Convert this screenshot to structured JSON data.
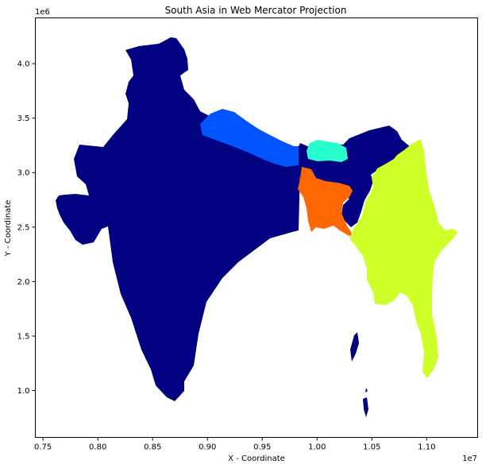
{
  "chart_data": {
    "type": "choropleth-map",
    "title": "South Asia in Web Mercator Projection",
    "xlabel": "X - Coordinate",
    "ylabel": "Y - Coordinate",
    "x_offset_label": "1e7",
    "y_offset_label": "1e6",
    "x_ticks": [
      "0.75",
      "0.80",
      "0.85",
      "0.90",
      "0.95",
      "1.00",
      "1.05",
      "1.10"
    ],
    "y_ticks": [
      "1.0",
      "1.5",
      "2.0",
      "2.5",
      "3.0",
      "3.5",
      "4.0"
    ],
    "xlim": [
      0.743,
      1.1465
    ],
    "ylim": [
      0.57,
      4.42
    ],
    "colormap": "jet",
    "regions": [
      {
        "name": "India",
        "color": "#000080"
      },
      {
        "name": "Nepal",
        "color": "#0055ff"
      },
      {
        "name": "Bhutan",
        "color": "#29ffce"
      },
      {
        "name": "Bangladesh",
        "color": "#ff6800"
      },
      {
        "name": "Myanmar",
        "color": "#ceff29"
      }
    ]
  }
}
